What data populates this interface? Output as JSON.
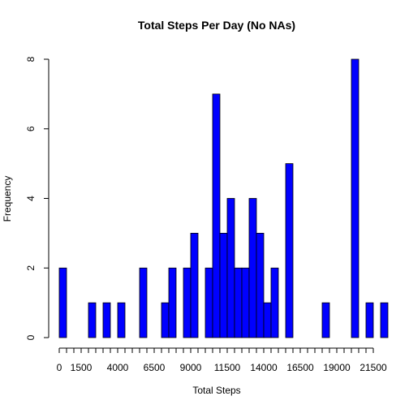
{
  "chart_data": {
    "type": "bar",
    "title": "Total Steps Per Day (No NAs)",
    "xlabel": "Total Steps",
    "ylabel": "Frequency",
    "bin_width": 500,
    "x_start": 0,
    "xlim": [
      0,
      21500
    ],
    "ylim": [
      0,
      8
    ],
    "x_ticks": [
      0,
      500,
      1000,
      1500,
      2000,
      2500,
      3000,
      3500,
      4000,
      4500,
      5000,
      5500,
      6000,
      6500,
      7000,
      7500,
      8000,
      8500,
      9000,
      9500,
      10000,
      10500,
      11000,
      11500,
      12000,
      12500,
      13000,
      13500,
      14000,
      14500,
      15000,
      15500,
      16000,
      16500,
      17000,
      17500,
      18000,
      18500,
      19000,
      19500,
      20000,
      20500,
      21000,
      21500
    ],
    "x_tick_labels": [
      "0",
      "1500",
      "4000",
      "6500",
      "9000",
      "11500",
      "14000",
      "16500",
      "19000",
      "21500"
    ],
    "y_ticks": [
      0,
      2,
      4,
      6,
      8
    ],
    "y_tick_labels": [
      "0",
      "2",
      "4",
      "6",
      "8"
    ],
    "values": [
      2,
      0,
      0,
      0,
      1,
      0,
      1,
      0,
      1,
      0,
      0,
      2,
      0,
      0,
      1,
      2,
      0,
      2,
      3,
      0,
      2,
      7,
      3,
      4,
      2,
      2,
      4,
      3,
      1,
      2,
      0,
      5,
      0,
      0,
      0,
      0,
      1,
      0,
      0,
      0,
      8,
      0,
      1,
      0,
      1
    ],
    "bar_color": "#0000ff",
    "edge_color": "#000000"
  }
}
